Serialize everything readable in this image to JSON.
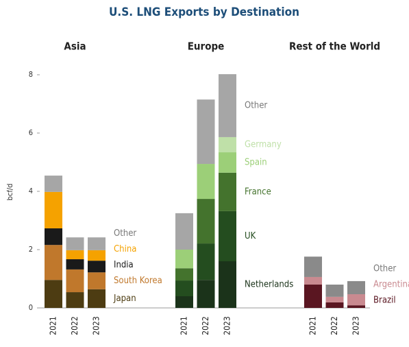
{
  "chart_data": {
    "type": "bar",
    "title": "U.S. LNG Exports by Destination",
    "y_label": "bcf/d",
    "ylim": [
      0,
      8
    ],
    "yticks": [
      0,
      2,
      4,
      6,
      8
    ],
    "groups": [
      {
        "name": "Asia",
        "categories": [
          "2021",
          "2022",
          "2023"
        ],
        "series": [
          {
            "name": "Japan",
            "color": "#4d3c12",
            "values": [
              0.96,
              0.54,
              0.64
            ]
          },
          {
            "name": "South Korea",
            "color": "#c0782c",
            "values": [
              1.2,
              0.78,
              0.58
            ]
          },
          {
            "name": "India",
            "color": "#1a1a1a",
            "values": [
              0.57,
              0.35,
              0.4
            ]
          },
          {
            "name": "China",
            "color": "#f5a200",
            "values": [
              1.25,
              0.31,
              0.36
            ]
          },
          {
            "name": "Other",
            "color": "#a6a6a6",
            "values": [
              0.56,
              0.44,
              0.44
            ]
          }
        ]
      },
      {
        "name": "Europe",
        "categories": [
          "2021",
          "2022",
          "2023"
        ],
        "series": [
          {
            "name": "Netherlands",
            "color": "#1b331a",
            "values": [
              0.4,
              0.96,
              1.6
            ]
          },
          {
            "name": "UK",
            "color": "#244d1f",
            "values": [
              0.54,
              1.25,
              1.72
            ]
          },
          {
            "name": "France",
            "color": "#44732d",
            "values": [
              0.42,
              1.53,
              1.32
            ]
          },
          {
            "name": "Spain",
            "color": "#9ccf78",
            "values": [
              0.64,
              1.2,
              0.7
            ]
          },
          {
            "name": "Germany",
            "color": "#bfe0a8",
            "values": [
              0,
              0,
              0.52
            ]
          },
          {
            "name": "Other",
            "color": "#a6a6a6",
            "values": [
              1.25,
              2.21,
              2.16
            ]
          }
        ]
      },
      {
        "name": "Rest of the World",
        "categories": [
          "2021",
          "2022",
          "2023"
        ],
        "series": [
          {
            "name": "Brazil",
            "color": "#5a1621",
            "values": [
              0.8,
              0.19,
              0.09
            ]
          },
          {
            "name": "Argentina",
            "color": "#c98a90",
            "values": [
              0.26,
              0.19,
              0.38
            ]
          },
          {
            "name": "Other",
            "color": "#8a8a8a",
            "values": [
              0.7,
              0.42,
              0.45
            ]
          }
        ]
      }
    ]
  }
}
